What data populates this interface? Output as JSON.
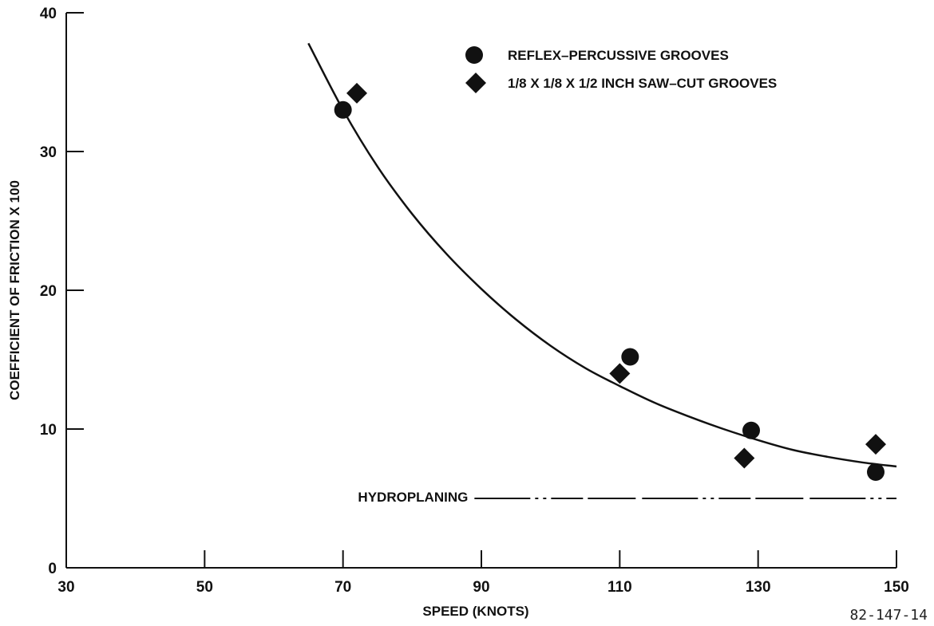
{
  "chart_data": {
    "type": "scatter",
    "title": "",
    "xlabel": "SPEED (KNOTS)",
    "ylabel": "COEFFICIENT OF FRICTION X 100",
    "xlim": [
      30,
      150
    ],
    "ylim": [
      0,
      40
    ],
    "x_ticks": [
      30,
      50,
      70,
      90,
      110,
      130,
      150
    ],
    "y_ticks": [
      0,
      10,
      20,
      30,
      40
    ],
    "grid": false,
    "legend_position": "top-right",
    "series": [
      {
        "name": "REFLEX–PERCUSSIVE GROOVES",
        "marker": "circle",
        "points": [
          {
            "x": 70,
            "y": 33
          },
          {
            "x": 111.5,
            "y": 15.2
          },
          {
            "x": 129,
            "y": 9.9
          },
          {
            "x": 147,
            "y": 6.9
          }
        ]
      },
      {
        "name": "1/8 X 1/8 X 1/2 INCH SAW–CUT GROOVES",
        "marker": "diamond",
        "points": [
          {
            "x": 72,
            "y": 34.2
          },
          {
            "x": 110,
            "y": 14
          },
          {
            "x": 128,
            "y": 7.9
          },
          {
            "x": 147,
            "y": 8.9
          }
        ]
      }
    ],
    "fit_curve": {
      "x": [
        65,
        70,
        75,
        80,
        85,
        90,
        95,
        100,
        105,
        110,
        115,
        120,
        125,
        130,
        135,
        140,
        145,
        150
      ],
      "y": [
        37.8,
        33.0,
        28.9,
        25.5,
        22.6,
        20.1,
        17.9,
        16.0,
        14.4,
        13.1,
        11.9,
        10.9,
        10.0,
        9.2,
        8.5,
        8.0,
        7.6,
        7.3
      ]
    },
    "reference_line": {
      "label": "HYDROPLANING",
      "y": 5,
      "x_start": 89,
      "x_end": 150
    },
    "figure_id": "82-147-14"
  }
}
